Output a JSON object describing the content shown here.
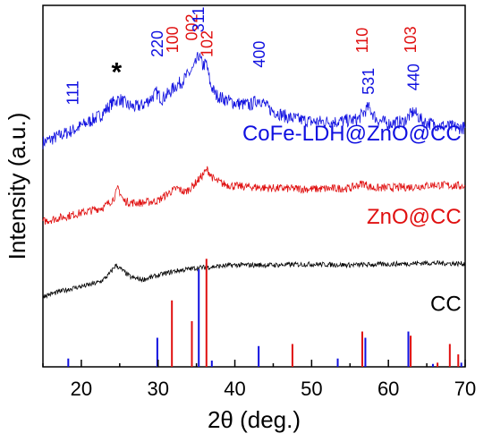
{
  "chart_data": {
    "type": "line",
    "xlabel": "2θ (deg.)",
    "ylabel": "Intensity (a.u.)",
    "xlim": [
      15,
      70
    ],
    "x_ticks": [
      20,
      30,
      40,
      50,
      60,
      70
    ],
    "grid": false,
    "colors": {
      "blue": "#1010e0",
      "red": "#e01010",
      "black": "#000000"
    },
    "series": [
      {
        "name": "CoFe-LDH@ZnO@CC",
        "color": "#1010e0",
        "x": [
          15,
          17,
          19,
          21,
          22.5,
          24,
          25,
          26,
          27,
          28,
          29,
          29.8,
          30.5,
          31.5,
          32.2,
          33,
          34,
          34.7,
          35.3,
          35.8,
          36.3,
          36.8,
          37.5,
          38.5,
          40,
          42,
          43.2,
          44.5,
          47,
          50,
          53,
          56,
          57.4,
          58.5,
          60,
          62,
          63.3,
          64.5,
          67,
          70
        ],
        "y": [
          5.4,
          5.55,
          5.7,
          5.9,
          6.05,
          6.35,
          6.45,
          6.3,
          6.25,
          6.3,
          6.45,
          6.6,
          6.45,
          6.6,
          6.75,
          6.85,
          7.05,
          7.2,
          7.5,
          7.25,
          7.3,
          6.8,
          6.55,
          6.45,
          6.35,
          6.3,
          6.45,
          6.2,
          6.0,
          5.9,
          5.9,
          5.95,
          6.25,
          5.95,
          5.85,
          5.9,
          6.15,
          5.9,
          5.8,
          5.75
        ]
      },
      {
        "name": "ZnO@CC",
        "color": "#e01010",
        "x": [
          15,
          18,
          21,
          23,
          24.2,
          24.8,
          25.5,
          26.5,
          28,
          30,
          31.5,
          32.5,
          33.5,
          34.5,
          35.5,
          36.4,
          37.3,
          38.5,
          40,
          45,
          50,
          55,
          56.7,
          58,
          63,
          66,
          70
        ],
        "y": [
          3.5,
          3.62,
          3.75,
          3.85,
          4.05,
          4.3,
          4.0,
          3.95,
          3.95,
          4.0,
          4.2,
          4.3,
          4.2,
          4.35,
          4.55,
          4.75,
          4.5,
          4.4,
          4.35,
          4.3,
          4.28,
          4.3,
          4.42,
          4.3,
          4.33,
          4.38,
          4.35
        ]
      },
      {
        "name": "CC",
        "color": "#000000",
        "x": [
          15,
          17,
          19,
          21,
          22.5,
          23.5,
          24.5,
          25.5,
          26.5,
          28,
          30,
          32,
          35,
          40,
          45,
          50,
          55,
          60,
          65,
          70
        ],
        "y": [
          1.7,
          1.8,
          1.9,
          1.97,
          2.05,
          2.2,
          2.45,
          2.3,
          2.15,
          2.1,
          2.2,
          2.3,
          2.38,
          2.45,
          2.45,
          2.47,
          2.45,
          2.47,
          2.5,
          2.48
        ]
      }
    ],
    "reference_blue": {
      "color": "#1010e0",
      "x": [
        18.3,
        29.9,
        35.3,
        37.0,
        43.1,
        53.4,
        57.0,
        62.6,
        65.8,
        69.5
      ],
      "y": [
        0.2,
        0.7,
        2.35,
        0.15,
        0.5,
        0.2,
        0.7,
        0.85,
        0.07,
        0.1
      ]
    },
    "reference_red": {
      "color": "#e01010",
      "x": [
        31.8,
        34.4,
        36.3,
        47.5,
        56.6,
        62.9,
        66.4,
        68.0,
        69.1
      ],
      "y": [
        1.6,
        1.1,
        2.6,
        0.55,
        0.85,
        0.75,
        0.1,
        0.55,
        0.3
      ]
    },
    "peak_labels": [
      {
        "text": "111",
        "x": 18.9,
        "y": 6.3,
        "color": "#1010e0"
      },
      {
        "text": "220",
        "x": 29.9,
        "y": 7.45,
        "color": "#1010e0"
      },
      {
        "text": "100",
        "x": 31.9,
        "y": 7.55,
        "color": "#e01010"
      },
      {
        "text": "002",
        "x": 34.4,
        "y": 7.85,
        "color": "#e01010"
      },
      {
        "text": "311",
        "x": 35.3,
        "y": 8.05,
        "color": "#1010e0"
      },
      {
        "text": "102",
        "x": 36.4,
        "y": 7.45,
        "color": "#e01010"
      },
      {
        "text": "400",
        "x": 43.2,
        "y": 7.2,
        "color": "#1010e0"
      },
      {
        "text": "531",
        "x": 57.4,
        "y": 6.55,
        "color": "#1010e0"
      },
      {
        "text": "110",
        "x": 56.6,
        "y": 7.55,
        "color": "#e01010"
      },
      {
        "text": "440",
        "x": 63.3,
        "y": 6.65,
        "color": "#1010e0"
      },
      {
        "text": "103",
        "x": 62.9,
        "y": 7.55,
        "color": "#e01010"
      }
    ],
    "annotations": [
      {
        "text": "*",
        "x": 24.6,
        "y": 7.1,
        "color": "#000000"
      },
      {
        "text": "CoFe-LDH@ZnO@CC",
        "x": 69.5,
        "y": 5.45,
        "color": "#1010e0",
        "align": "end"
      },
      {
        "text": "ZnO@CC",
        "x": 69.5,
        "y": 3.45,
        "color": "#e01010",
        "align": "end"
      },
      {
        "text": "CC",
        "x": 69.5,
        "y": 1.35,
        "color": "#000000",
        "align": "end"
      }
    ]
  }
}
